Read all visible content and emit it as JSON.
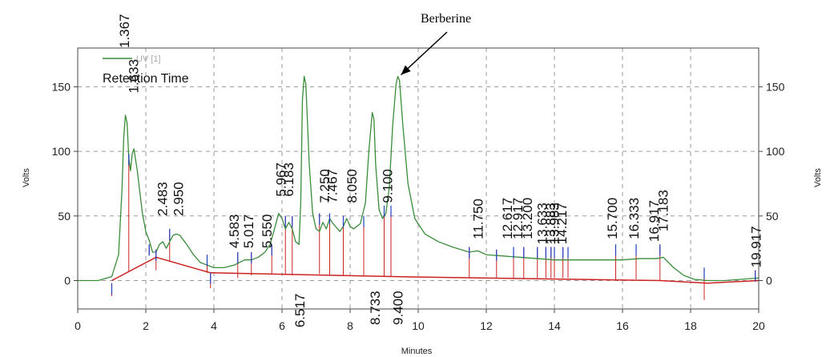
{
  "chart_data": {
    "type": "line",
    "xlabel": "Minutes",
    "ylabel_left": "Volts",
    "ylabel_right": "Volts",
    "xlim": [
      0,
      20
    ],
    "ylim": [
      -22,
      180
    ],
    "x_ticks": [
      0,
      2,
      4,
      6,
      8,
      10,
      12,
      14,
      16,
      18,
      20
    ],
    "y_ticks": [
      0,
      50,
      100,
      150
    ],
    "grid": true,
    "legend": {
      "placement": "top-left",
      "series_label": "UV [1]",
      "title": "Retention Time"
    },
    "annotation": {
      "text": "Berberine",
      "points_to_x": 9.4,
      "points_to_y": 158
    },
    "colors": {
      "trace": "#3a8c3a",
      "baseline": "#cc2222",
      "peak_marker": "#1f3fbf",
      "peak_drop": "#cc2222",
      "grid": "#9a9a9a"
    },
    "series": [
      {
        "name": "UV [1]",
        "x": [
          0,
          0.6,
          1.0,
          1.2,
          1.3,
          1.35,
          1.4,
          1.45,
          1.5,
          1.55,
          1.6,
          1.65,
          1.75,
          1.9,
          2.0,
          2.1,
          2.2,
          2.3,
          2.4,
          2.5,
          2.6,
          2.7,
          2.8,
          2.9,
          3.0,
          3.2,
          3.4,
          3.6,
          3.8,
          4.0,
          4.3,
          4.6,
          4.9,
          5.1,
          5.3,
          5.5,
          5.65,
          5.8,
          5.9,
          6.0,
          6.1,
          6.2,
          6.3,
          6.4,
          6.5,
          6.55,
          6.6,
          6.65,
          6.7,
          6.8,
          6.9,
          7.0,
          7.1,
          7.2,
          7.3,
          7.4,
          7.5,
          7.7,
          7.8,
          7.9,
          8.0,
          8.1,
          8.3,
          8.45,
          8.55,
          8.65,
          8.7,
          8.75,
          8.85,
          8.95,
          9.05,
          9.15,
          9.25,
          9.35,
          9.4,
          9.45,
          9.55,
          9.7,
          9.9,
          10.2,
          10.6,
          11.0,
          11.5,
          11.75,
          12.0,
          12.5,
          13.0,
          13.5,
          14.0,
          14.5,
          15.0,
          15.5,
          16.0,
          16.5,
          17.0,
          17.2,
          17.5,
          17.8,
          18.1,
          18.5,
          19.0,
          19.5,
          20.0
        ],
        "y": [
          0,
          0,
          3,
          20,
          70,
          110,
          128,
          122,
          95,
          85,
          98,
          102,
          85,
          52,
          38,
          31,
          22,
          22,
          28,
          30,
          25,
          30,
          35,
          36,
          35,
          28,
          20,
          14,
          12,
          10,
          10,
          12,
          16,
          16,
          18,
          22,
          28,
          42,
          52,
          48,
          40,
          45,
          40,
          30,
          28,
          60,
          140,
          158,
          152,
          90,
          52,
          40,
          38,
          45,
          40,
          48,
          44,
          38,
          42,
          48,
          42,
          40,
          44,
          60,
          100,
          130,
          125,
          90,
          55,
          48,
          52,
          72,
          120,
          152,
          158,
          155,
          120,
          75,
          48,
          36,
          30,
          26,
          22,
          23,
          20,
          19,
          18,
          17,
          16,
          16,
          16,
          16,
          16,
          17,
          17,
          18,
          10,
          4,
          1,
          0,
          0,
          1,
          2
        ]
      }
    ],
    "baseline_segments": [
      [
        [
          1.0,
          0
        ],
        [
          2.3,
          18
        ],
        [
          3.9,
          6
        ],
        [
          9.4,
          3
        ],
        [
          17.1,
          0
        ],
        [
          18.5,
          -2
        ],
        [
          20.0,
          0
        ]
      ]
    ],
    "peak_labels": [
      {
        "label": "1.367",
        "x": 1.367,
        "label_y": 180
      },
      {
        "label": "1.633",
        "x": 1.633,
        "label_y": 145
      },
      {
        "label": "2.483",
        "x": 2.483,
        "label_y": 50
      },
      {
        "label": "2.950",
        "x": 2.95,
        "label_y": 50
      },
      {
        "label": "4.583",
        "x": 4.583,
        "label_y": 25
      },
      {
        "label": "5.017",
        "x": 5.017,
        "label_y": 25
      },
      {
        "label": "5.550",
        "x": 5.55,
        "label_y": 25
      },
      {
        "label": "5.967",
        "x": 5.967,
        "label_y": 65
      },
      {
        "label": "6.183",
        "x": 6.183,
        "label_y": 65
      },
      {
        "label": "6.517",
        "x": 6.517,
        "label_y": -10,
        "below": true
      },
      {
        "label": "7.250",
        "x": 7.25,
        "label_y": 60
      },
      {
        "label": "7.467",
        "x": 7.467,
        "label_y": 60
      },
      {
        "label": "8.050",
        "x": 8.05,
        "label_y": 60
      },
      {
        "label": "8.733",
        "x": 8.733,
        "label_y": -8,
        "below": true
      },
      {
        "label": "9.100",
        "x": 9.1,
        "label_y": 60
      },
      {
        "label": "9.400",
        "x": 9.4,
        "label_y": -8,
        "below": true
      },
      {
        "label": "11.750",
        "x": 11.75,
        "label_y": 32
      },
      {
        "label": "12.617",
        "x": 12.617,
        "label_y": 32
      },
      {
        "label": "12.917",
        "x": 12.917,
        "label_y": 32
      },
      {
        "label": "13.200",
        "x": 13.2,
        "label_y": 32
      },
      {
        "label": "13.633",
        "x": 13.633,
        "label_y": 28
      },
      {
        "label": "13.883",
        "x": 13.883,
        "label_y": 28
      },
      {
        "label": "13.983",
        "x": 13.983,
        "label_y": 28
      },
      {
        "label": "14.217",
        "x": 14.217,
        "label_y": 28
      },
      {
        "label": "15.700",
        "x": 15.7,
        "label_y": 32
      },
      {
        "label": "16.333",
        "x": 16.333,
        "label_y": 32
      },
      {
        "label": "16.917",
        "x": 16.917,
        "label_y": 30
      },
      {
        "label": "17.183",
        "x": 17.183,
        "label_y": 38
      },
      {
        "label": "19.917",
        "x": 19.917,
        "label_y": 10
      }
    ],
    "peak_markers": [
      {
        "x": 1.0,
        "y_top": -2,
        "y_bottom": -12
      },
      {
        "x": 1.5,
        "y_top": 98,
        "y_bottom": 7
      },
      {
        "x": 2.1,
        "y_top": 28,
        "y_bottom": 20
      },
      {
        "x": 2.3,
        "y_top": 24,
        "y_bottom": 8
      },
      {
        "x": 2.7,
        "y_top": 40,
        "y_bottom": 15
      },
      {
        "x": 3.8,
        "y_top": 20,
        "y_bottom": 6
      },
      {
        "x": 3.9,
        "y_top": 6,
        "y_bottom": -6
      },
      {
        "x": 4.7,
        "y_top": 22,
        "y_bottom": 2
      },
      {
        "x": 5.1,
        "y_top": 22,
        "y_bottom": 4
      },
      {
        "x": 5.7,
        "y_top": 28,
        "y_bottom": 5
      },
      {
        "x": 6.1,
        "y_top": 50,
        "y_bottom": 5
      },
      {
        "x": 6.3,
        "y_top": 50,
        "y_bottom": 4
      },
      {
        "x": 7.1,
        "y_top": 52,
        "y_bottom": 5
      },
      {
        "x": 7.4,
        "y_top": 52,
        "y_bottom": 4
      },
      {
        "x": 7.8,
        "y_top": 50,
        "y_bottom": 4
      },
      {
        "x": 8.4,
        "y_top": 50,
        "y_bottom": 4
      },
      {
        "x": 9.0,
        "y_top": 58,
        "y_bottom": 3
      },
      {
        "x": 9.2,
        "y_top": 58,
        "y_bottom": 3
      },
      {
        "x": 11.5,
        "y_top": 26,
        "y_bottom": 2
      },
      {
        "x": 12.3,
        "y_top": 24,
        "y_bottom": 2
      },
      {
        "x": 12.8,
        "y_top": 26,
        "y_bottom": 2
      },
      {
        "x": 13.1,
        "y_top": 26,
        "y_bottom": 2
      },
      {
        "x": 13.5,
        "y_top": 26,
        "y_bottom": 2
      },
      {
        "x": 13.75,
        "y_top": 26,
        "y_bottom": 2
      },
      {
        "x": 13.9,
        "y_top": 26,
        "y_bottom": 2
      },
      {
        "x": 14.0,
        "y_top": 26,
        "y_bottom": 2
      },
      {
        "x": 14.25,
        "y_top": 26,
        "y_bottom": 2
      },
      {
        "x": 14.4,
        "y_top": 26,
        "y_bottom": 2
      },
      {
        "x": 15.8,
        "y_top": 28,
        "y_bottom": 1
      },
      {
        "x": 16.4,
        "y_top": 28,
        "y_bottom": 1
      },
      {
        "x": 17.1,
        "y_top": 28,
        "y_bottom": 0
      },
      {
        "x": 18.4,
        "y_top": 10,
        "y_bottom": -15
      },
      {
        "x": 19.9,
        "y_top": 8,
        "y_bottom": -1
      }
    ]
  }
}
